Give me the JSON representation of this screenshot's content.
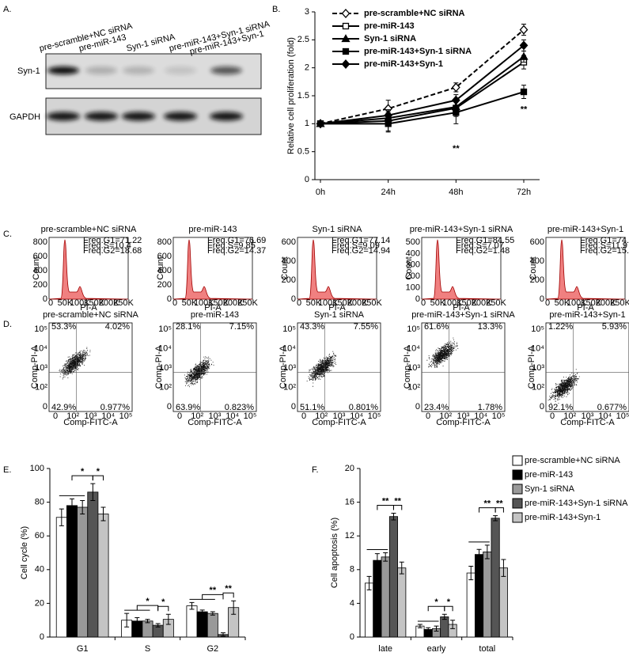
{
  "panel_labels": [
    "A.",
    "B.",
    "C.",
    "D.",
    "E.",
    "F."
  ],
  "blot": {
    "lanes": [
      "pre-scramble+NC siRNA",
      "pre-miR-143",
      "Syn-1 siRNA",
      "pre-miR-143+Syn-1 siRNA",
      "pre-miR-143+Syn-1"
    ],
    "rows": [
      "Syn-1",
      "GAPDH"
    ]
  },
  "chart_data": [
    {
      "type": "line",
      "y_label": "Relative cell proliferation (fold)",
      "categories": [
        "0h",
        "24h",
        "48h",
        "72h"
      ],
      "ylim": [
        0,
        3
      ],
      "yticks": [
        0,
        0.5,
        1,
        1.5,
        2,
        2.5,
        3
      ],
      "series": [
        {
          "name": "pre-scramble+NC siRNA",
          "color": "#000000",
          "marker": "diamond",
          "filled": false,
          "dashed": true,
          "values": [
            1,
            1.27,
            1.65,
            2.68
          ],
          "errors": [
            0.03,
            0.15,
            0.08,
            0.1
          ]
        },
        {
          "name": "pre-miR-143",
          "color": "#000000",
          "marker": "square",
          "filled": false,
          "dashed": false,
          "values": [
            1,
            1.05,
            1.28,
            2.1
          ],
          "errors": [
            0.03,
            0.18,
            0.15,
            0.12
          ]
        },
        {
          "name": "Syn-1 siRNA",
          "color": "#000000",
          "marker": "triangle",
          "filled": true,
          "dashed": false,
          "values": [
            1,
            1.1,
            1.3,
            2.2
          ],
          "errors": [
            0.03,
            0.1,
            0.1,
            0.1
          ]
        },
        {
          "name": "pre-miR-143+Syn-1 siRNA",
          "color": "#000000",
          "marker": "square",
          "filled": true,
          "dashed": false,
          "values": [
            1,
            1.0,
            1.2,
            1.57
          ],
          "errors": [
            0.03,
            0.15,
            0.2,
            0.12
          ]
        },
        {
          "name": "pre-miR-143+Syn-1",
          "color": "#000000",
          "marker": "diamond",
          "filled": true,
          "dashed": false,
          "values": [
            1,
            1.15,
            1.42,
            2.4
          ],
          "errors": [
            0.03,
            0.1,
            0.1,
            0.1
          ]
        }
      ],
      "annotations": [
        "**",
        "**"
      ]
    },
    {
      "type": "bar",
      "y_label": "Cell cycle (%)",
      "categories": [
        "G1",
        "S",
        "G2"
      ],
      "ylim": [
        0,
        100
      ],
      "yticks": [
        0,
        20,
        40,
        60,
        80,
        100
      ],
      "series": [
        {
          "color": "#ffffff",
          "values": [
            71,
            10,
            18.5
          ],
          "errors": [
            5,
            4,
            2
          ]
        },
        {
          "color": "#000000",
          "values": [
            78,
            9.5,
            15
          ],
          "errors": [
            4,
            2,
            1
          ]
        },
        {
          "color": "#999999",
          "values": [
            77,
            9.5,
            14
          ],
          "errors": [
            4,
            1,
            1
          ]
        },
        {
          "color": "#555555",
          "values": [
            86,
            7,
            1.5
          ],
          "errors": [
            5,
            1,
            1
          ]
        },
        {
          "color": "#c4c4c4",
          "values": [
            73,
            10.5,
            17.5
          ],
          "errors": [
            4,
            3,
            4
          ]
        }
      ],
      "annotations": [
        "*",
        "*",
        "*",
        "*",
        "**",
        "**"
      ]
    },
    {
      "type": "bar",
      "y_label": "Cell apoptosis (%)",
      "categories": [
        "late",
        "early",
        "total"
      ],
      "ylim": [
        0,
        20
      ],
      "yticks": [
        0,
        4,
        8,
        12,
        16,
        20
      ],
      "legend": "right",
      "series": [
        {
          "name": "pre-scramble+NC siRNA",
          "color": "#ffffff",
          "values": [
            6.4,
            1.3,
            7.6
          ],
          "errors": [
            0.8,
            0.2,
            0.8
          ]
        },
        {
          "name": "pre-miR-143",
          "color": "#000000",
          "values": [
            9.1,
            0.9,
            9.8
          ],
          "errors": [
            0.8,
            0.2,
            0.6
          ]
        },
        {
          "name": "Syn-1 siRNA",
          "color": "#999999",
          "values": [
            9.5,
            1.0,
            10.1
          ],
          "errors": [
            0.5,
            0.3,
            0.8
          ]
        },
        {
          "name": "pre-miR-143+Syn-1 siRNA",
          "color": "#555555",
          "values": [
            14.3,
            2.4,
            14.1
          ],
          "errors": [
            0.4,
            0.3,
            0.3
          ]
        },
        {
          "name": "pre-miR-143+Syn-1",
          "color": "#c4c4c4",
          "values": [
            8.2,
            1.5,
            8.2
          ],
          "errors": [
            0.7,
            0.5,
            1.0
          ]
        }
      ],
      "annotations": [
        "**",
        "**",
        "*",
        "*",
        "**",
        "**"
      ]
    }
  ],
  "cell_cycle": {
    "x_label": "PI-A",
    "y_label": "Count",
    "x_tick_labels": [
      "0",
      "50K",
      "100K",
      "150K",
      "200K",
      "250K"
    ],
    "plots": [
      {
        "title": "pre-scramble+NC siRNA",
        "stats": [
          "Freq.G1=71.22",
          "Freq.S=10.4",
          "Freq.G2=18.68"
        ],
        "y_tick_labels": [
          "0",
          "200",
          "400",
          "600",
          "800"
        ]
      },
      {
        "title": "pre-miR-143",
        "stats": [
          "Freq.G1=76.69",
          "Freq.S=9.85",
          "Freq.G2=14.37"
        ],
        "y_tick_labels": [
          "0",
          "200",
          "400",
          "600",
          "800"
        ]
      },
      {
        "title": "Syn-1 siRNA",
        "stats": [
          "Freq.G1=77.14",
          "Freq.S=9.09",
          "Freq.G2=14.94"
        ],
        "y_tick_labels": [
          "0",
          "200",
          "400",
          "600"
        ]
      },
      {
        "title": "pre-miR-143+Syn-1 siRNA",
        "stats": [
          "Freq.G1=84.55",
          "Freq.S=7.07",
          "Freq.G2=1.48"
        ],
        "y_tick_labels": [
          "0",
          "100",
          "200",
          "300",
          "400",
          "500"
        ]
      },
      {
        "title": "pre-miR-143+Syn-1",
        "stats": [
          "Freq.G1=74.12",
          "Freq.S=11.9",
          "Freq.G2=15.27"
        ],
        "y_tick_labels": [
          "0",
          "200",
          "400",
          "600"
        ]
      }
    ]
  },
  "apoptosis": {
    "x_label": "Comp-FITC-A",
    "y_label": "Comp-PI-A",
    "tick_labels": [
      "0",
      "10²",
      "10³",
      "10⁴",
      "10⁵"
    ],
    "plots": [
      {
        "title": "pre-scramble+NC siRNA",
        "quadrants": [
          "53.3%",
          "4.02%",
          "42.9%",
          "0.977%"
        ]
      },
      {
        "title": "pre-miR-143",
        "quadrants": [
          "28.1%",
          "7.15%",
          "63.9%",
          "0.823%"
        ]
      },
      {
        "title": "Syn-1 siRNA",
        "quadrants": [
          "43.3%",
          "7.55%",
          "51.1%",
          "0.801%"
        ]
      },
      {
        "title": "pre-miR-143+Syn-1 siRNA",
        "quadrants": [
          "61.6%",
          "13.3%",
          "23.4%",
          "1.78%"
        ]
      },
      {
        "title": "pre-miR-143+Syn-1",
        "quadrants": [
          "1.22%",
          "5.93%",
          "92.1%",
          "0.677%"
        ]
      }
    ]
  }
}
